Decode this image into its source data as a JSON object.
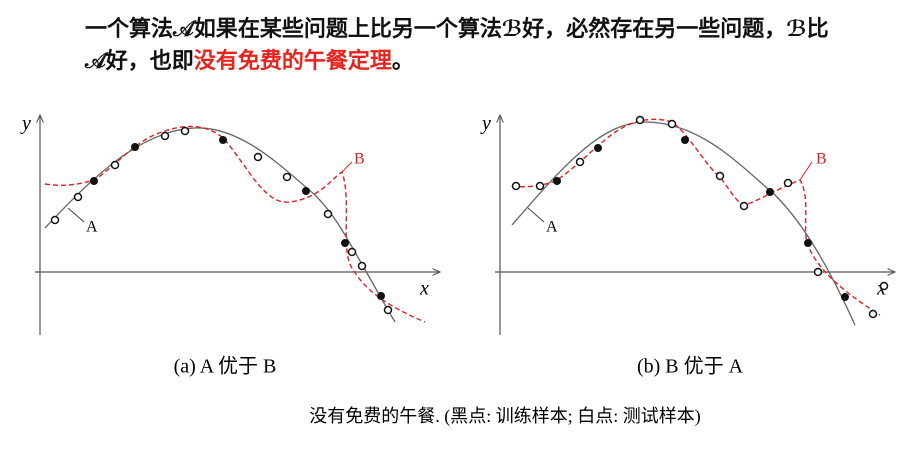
{
  "heading": {
    "text": "一个算法𝒜如果在某些问题上比另一个算法ℬ好，必然存在另一些问题，ℬ比𝒜好，也即",
    "highlight": "没有免费的午餐定理",
    "end": "。"
  },
  "figures": [
    {
      "axis_x": "x",
      "axis_y": "y",
      "label_a": "A",
      "label_b": "B",
      "caption": "(a) A 优于 B"
    },
    {
      "axis_x": "x",
      "axis_y": "y",
      "label_a": "A",
      "label_b": "B",
      "caption": "(b) B 优于 A"
    }
  ],
  "caption": "没有免费的午餐. (黑点: 训练样本; 白点: 测试样本)"
}
